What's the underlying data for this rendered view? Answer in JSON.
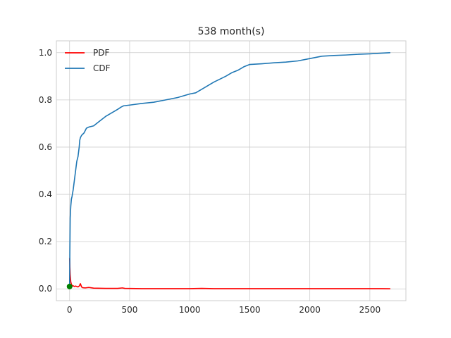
{
  "chart_data": {
    "type": "line",
    "title": "538 month(s)",
    "xlabel": "",
    "ylabel": "",
    "xlim": [
      -110,
      2800
    ],
    "ylim": [
      -0.05,
      1.05
    ],
    "xticks": [
      0,
      500,
      1000,
      1500,
      2000,
      2500
    ],
    "yticks": [
      0.0,
      0.2,
      0.4,
      0.6,
      0.8,
      1.0
    ],
    "xtick_labels": [
      "0",
      "500",
      "1000",
      "1500",
      "2000",
      "2500"
    ],
    "ytick_labels": [
      "0.0",
      "0.2",
      "0.4",
      "0.6",
      "0.8",
      "1.0"
    ],
    "grid": true,
    "legend_position": "top-left",
    "series": [
      {
        "name": "PDF",
        "color": "#ff0000",
        "x": [
          0,
          5,
          10,
          15,
          20,
          25,
          30,
          40,
          50,
          60,
          70,
          80,
          90,
          95,
          100,
          110,
          130,
          160,
          200,
          300,
          400,
          440,
          460,
          600,
          800,
          1000,
          1100,
          1200,
          1400,
          1600,
          1800,
          2000,
          2200,
          2400,
          2600,
          2670
        ],
        "y": [
          0.13,
          0.06,
          0.03,
          0.02,
          0.015,
          0.012,
          0.013,
          0.01,
          0.012,
          0.01,
          0.008,
          0.012,
          0.022,
          0.015,
          0.008,
          0.005,
          0.004,
          0.006,
          0.003,
          0.002,
          0.002,
          0.004,
          0.002,
          0.001,
          0.001,
          0.001,
          0.002,
          0.001,
          0.001,
          0.001,
          0.001,
          0.001,
          0.001,
          0.001,
          0.001,
          0.0005
        ]
      },
      {
        "name": "CDF",
        "color": "#1f77b4",
        "x": [
          0,
          2,
          5,
          10,
          15,
          20,
          30,
          40,
          50,
          60,
          70,
          80,
          85,
          90,
          100,
          110,
          120,
          140,
          160,
          200,
          250,
          300,
          350,
          400,
          430,
          450,
          500,
          600,
          700,
          800,
          900,
          1000,
          1050,
          1100,
          1200,
          1300,
          1350,
          1400,
          1450,
          1500,
          1600,
          1700,
          1800,
          1900,
          2000,
          2100,
          2200,
          2300,
          2400,
          2500,
          2600,
          2670
        ],
        "y": [
          0.01,
          0.15,
          0.3,
          0.35,
          0.38,
          0.39,
          0.42,
          0.46,
          0.5,
          0.54,
          0.56,
          0.6,
          0.63,
          0.64,
          0.65,
          0.655,
          0.66,
          0.68,
          0.685,
          0.69,
          0.71,
          0.73,
          0.745,
          0.76,
          0.77,
          0.775,
          0.778,
          0.785,
          0.79,
          0.8,
          0.81,
          0.825,
          0.83,
          0.845,
          0.875,
          0.9,
          0.915,
          0.925,
          0.94,
          0.95,
          0.953,
          0.957,
          0.96,
          0.965,
          0.975,
          0.985,
          0.988,
          0.99,
          0.993,
          0.995,
          0.998,
          1.0
        ]
      }
    ],
    "markers": [
      {
        "x": 0,
        "y": 0.01,
        "color": "#008000"
      }
    ]
  }
}
